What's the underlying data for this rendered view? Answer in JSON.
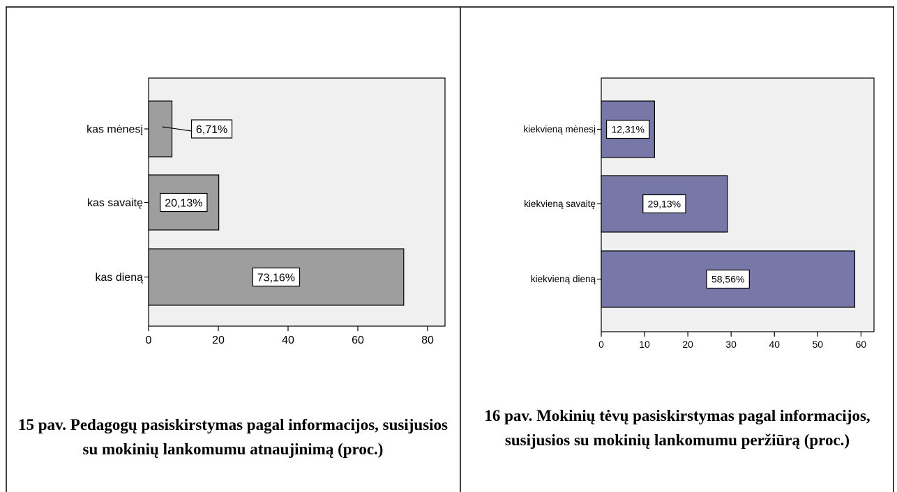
{
  "chart_data": [
    {
      "type": "bar",
      "orientation": "horizontal",
      "categories": [
        "kas mėnesį",
        "kas savaitę",
        "kas dieną"
      ],
      "values": [
        6.71,
        20.13,
        73.16
      ],
      "value_labels": [
        "6,71%",
        "20,13%",
        "73,16%"
      ],
      "xticks": [
        "0",
        "20",
        "40",
        "60",
        "80"
      ],
      "xlim": [
        0,
        85
      ],
      "bar_color": "#9e9e9e",
      "plot_background": "#f0f0f0",
      "grid": false,
      "caption": "15 pav. Pedagogų pasiskirstymas pagal informacijos, susijusios su mokinių lankomumu atnaujinimą (proc.)"
    },
    {
      "type": "bar",
      "orientation": "horizontal",
      "categories": [
        "kiekvieną mėnesį",
        "kiekvieną savaitę",
        "kiekvieną dieną"
      ],
      "values": [
        12.31,
        29.13,
        58.56
      ],
      "value_labels": [
        "12,31%",
        "29,13%",
        "58,56%"
      ],
      "xticks": [
        "0",
        "10",
        "20",
        "30",
        "40",
        "50",
        "60"
      ],
      "xlim": [
        0,
        63
      ],
      "bar_color": "#7777a8",
      "plot_background": "#f0f0f0",
      "grid": false,
      "caption": "16 pav. Mokinių tėvų pasiskirstymas pagal informacijos, susijusios su mokinių lankomumu peržiūrą (proc.)"
    }
  ]
}
